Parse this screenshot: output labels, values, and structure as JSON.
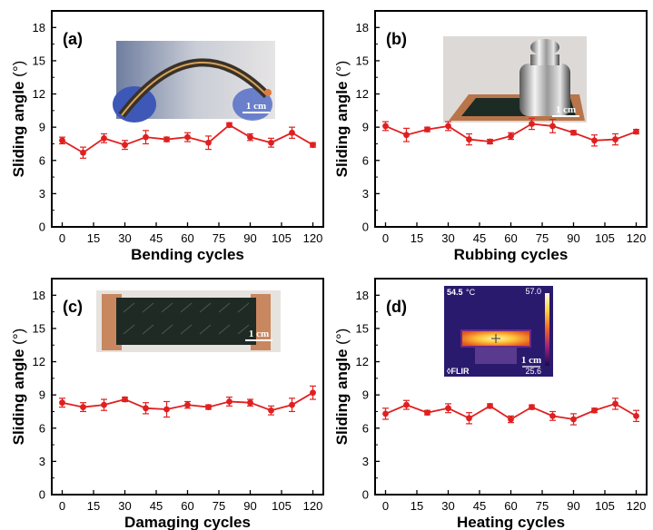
{
  "chart_data": [
    {
      "type": "line",
      "panel_label": "(a)",
      "xlabel": "Bending cycles",
      "ylabel": "Sliding angle",
      "ylabel_unit": "(°)",
      "xticks": [
        0,
        15,
        30,
        45,
        60,
        75,
        90,
        105,
        120
      ],
      "yticks": [
        0,
        3,
        6,
        9,
        12,
        15,
        18
      ],
      "xlim": [
        -5,
        125
      ],
      "ylim": [
        0,
        19.5
      ],
      "series": [
        {
          "color": "#e02020",
          "x": [
            0,
            10,
            20,
            30,
            40,
            50,
            60,
            70,
            80,
            90,
            100,
            110,
            120
          ],
          "y": [
            7.8,
            6.7,
            8.0,
            7.4,
            8.1,
            7.9,
            8.1,
            7.6,
            9.2,
            8.1,
            7.6,
            8.5,
            7.4
          ],
          "err": [
            0.3,
            0.5,
            0.4,
            0.4,
            0.6,
            0.2,
            0.4,
            0.6,
            0.2,
            0.3,
            0.4,
            0.5,
            0.2
          ]
        }
      ],
      "inset": {
        "kind": "photo-bent-film",
        "scale_text": "1 cm"
      }
    },
    {
      "type": "line",
      "panel_label": "(b)",
      "xlabel": "Rubbing cycles",
      "ylabel": "Sliding angle",
      "ylabel_unit": "(°)",
      "xticks": [
        0,
        15,
        30,
        45,
        60,
        75,
        90,
        105,
        120
      ],
      "yticks": [
        0,
        3,
        6,
        9,
        12,
        15,
        18
      ],
      "xlim": [
        -5,
        125
      ],
      "ylim": [
        0,
        19.5
      ],
      "series": [
        {
          "color": "#e02020",
          "x": [
            0,
            10,
            20,
            30,
            40,
            50,
            60,
            70,
            80,
            90,
            100,
            110,
            120
          ],
          "y": [
            9.1,
            8.3,
            8.8,
            9.1,
            7.9,
            7.7,
            8.2,
            9.3,
            9.1,
            8.5,
            7.8,
            7.9,
            8.6
          ],
          "err": [
            0.4,
            0.6,
            0.2,
            0.4,
            0.5,
            0.2,
            0.3,
            0.5,
            0.6,
            0.2,
            0.5,
            0.5,
            0.2
          ]
        }
      ],
      "inset": {
        "kind": "photo-weight-on-film",
        "scale_text": "1 cm"
      }
    },
    {
      "type": "line",
      "panel_label": "(c)",
      "xlabel": "Damaging cycles",
      "ylabel": "Sliding angle",
      "ylabel_unit": "(°)",
      "xticks": [
        0,
        15,
        30,
        45,
        60,
        75,
        90,
        105,
        120
      ],
      "yticks": [
        0,
        3,
        6,
        9,
        12,
        15,
        18
      ],
      "xlim": [
        -5,
        125
      ],
      "ylim": [
        0,
        19.5
      ],
      "series": [
        {
          "color": "#e02020",
          "x": [
            0,
            10,
            20,
            30,
            40,
            50,
            60,
            70,
            80,
            90,
            100,
            110,
            120
          ],
          "y": [
            8.3,
            7.9,
            8.1,
            8.6,
            7.8,
            7.7,
            8.1,
            7.9,
            8.4,
            8.3,
            7.6,
            8.1,
            9.2
          ],
          "err": [
            0.4,
            0.4,
            0.5,
            0.2,
            0.5,
            0.7,
            0.3,
            0.2,
            0.4,
            0.3,
            0.4,
            0.6,
            0.6
          ]
        }
      ],
      "inset": {
        "kind": "photo-damaged-film",
        "scale_text": "1 cm"
      }
    },
    {
      "type": "line",
      "panel_label": "(d)",
      "xlabel": "Heating cycles",
      "ylabel": "Sliding angle",
      "ylabel_unit": "(°)",
      "xticks": [
        0,
        15,
        30,
        45,
        60,
        75,
        90,
        105,
        120
      ],
      "yticks": [
        0,
        3,
        6,
        9,
        12,
        15,
        18
      ],
      "xlim": [
        -5,
        125
      ],
      "ylim": [
        0,
        19.5
      ],
      "series": [
        {
          "color": "#e02020",
          "x": [
            0,
            10,
            20,
            30,
            40,
            50,
            60,
            70,
            80,
            90,
            100,
            110,
            120
          ],
          "y": [
            7.3,
            8.1,
            7.4,
            7.8,
            6.9,
            8.0,
            6.8,
            7.9,
            7.1,
            6.8,
            7.6,
            8.2,
            7.1
          ],
          "err": [
            0.5,
            0.4,
            0.2,
            0.4,
            0.5,
            0.2,
            0.3,
            0.2,
            0.4,
            0.5,
            0.2,
            0.5,
            0.5
          ]
        }
      ],
      "inset": {
        "kind": "thermal-image",
        "scale_text": "1 cm",
        "temp_readout": "54.5",
        "temp_unit": "°C",
        "brand": "◊FLIR",
        "scale_max": "57.0",
        "scale_min": "25.6"
      }
    }
  ]
}
